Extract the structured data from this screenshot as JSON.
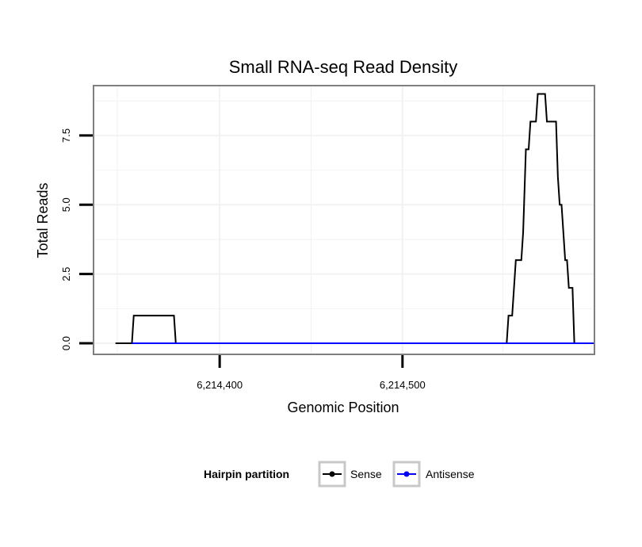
{
  "chart_data": {
    "type": "line",
    "title": "Small RNA-seq Read Density",
    "xlabel": "Genomic Position",
    "ylabel": "Total Reads",
    "xlim": [
      6214331,
      6214605
    ],
    "ylim": [
      -0.4,
      9.3
    ],
    "x_ticks": [
      {
        "value": 6214400,
        "label": "6,214,400"
      },
      {
        "value": 6214500,
        "label": "6,214,500"
      }
    ],
    "y_ticks": [
      {
        "value": 0,
        "label": "0.0"
      },
      {
        "value": 2.5,
        "label": "2.5"
      },
      {
        "value": 5,
        "label": "5.0"
      },
      {
        "value": 7.5,
        "label": "7.5"
      }
    ],
    "x_minor_gridlines": [
      6214344,
      6214450,
      6214555
    ],
    "y_minor_gridlines": [
      1.25,
      3.75,
      6.25,
      8.75
    ],
    "grid": true,
    "legend": {
      "title": "Hairpin partition",
      "position": "bottom"
    },
    "series": [
      {
        "name": "Sense",
        "color": "#000000",
        "x": [
          6214343,
          6214352,
          6214353,
          6214375,
          6214376,
          6214557,
          6214558,
          6214560,
          6214561,
          6214562,
          6214563,
          6214565,
          6214566,
          6214566.5,
          6214567,
          6214567.5,
          6214568,
          6214569,
          6214570,
          6214571,
          6214572,
          6214573,
          6214574,
          6214578,
          6214579,
          6214584,
          6214585,
          6214586,
          6214587,
          6214588,
          6214589,
          6214590,
          6214591,
          6214593,
          6214594,
          6214594.5,
          6214595,
          6214599,
          6214600,
          6214601,
          6214602,
          6214605
        ],
        "y": [
          0,
          0,
          1,
          1,
          0,
          0,
          1,
          1,
          2,
          3,
          3,
          3,
          4,
          5,
          6,
          7,
          7,
          7,
          8,
          8,
          8,
          8,
          9,
          9,
          8,
          8,
          6,
          5,
          5,
          4,
          3,
          3,
          2,
          2,
          0,
          0,
          0,
          0,
          0,
          0,
          0,
          0
        ]
      },
      {
        "name": "Antisense",
        "color": "#0000ff",
        "x": [
          6214352,
          6214605
        ],
        "y": [
          0,
          0
        ]
      }
    ]
  }
}
